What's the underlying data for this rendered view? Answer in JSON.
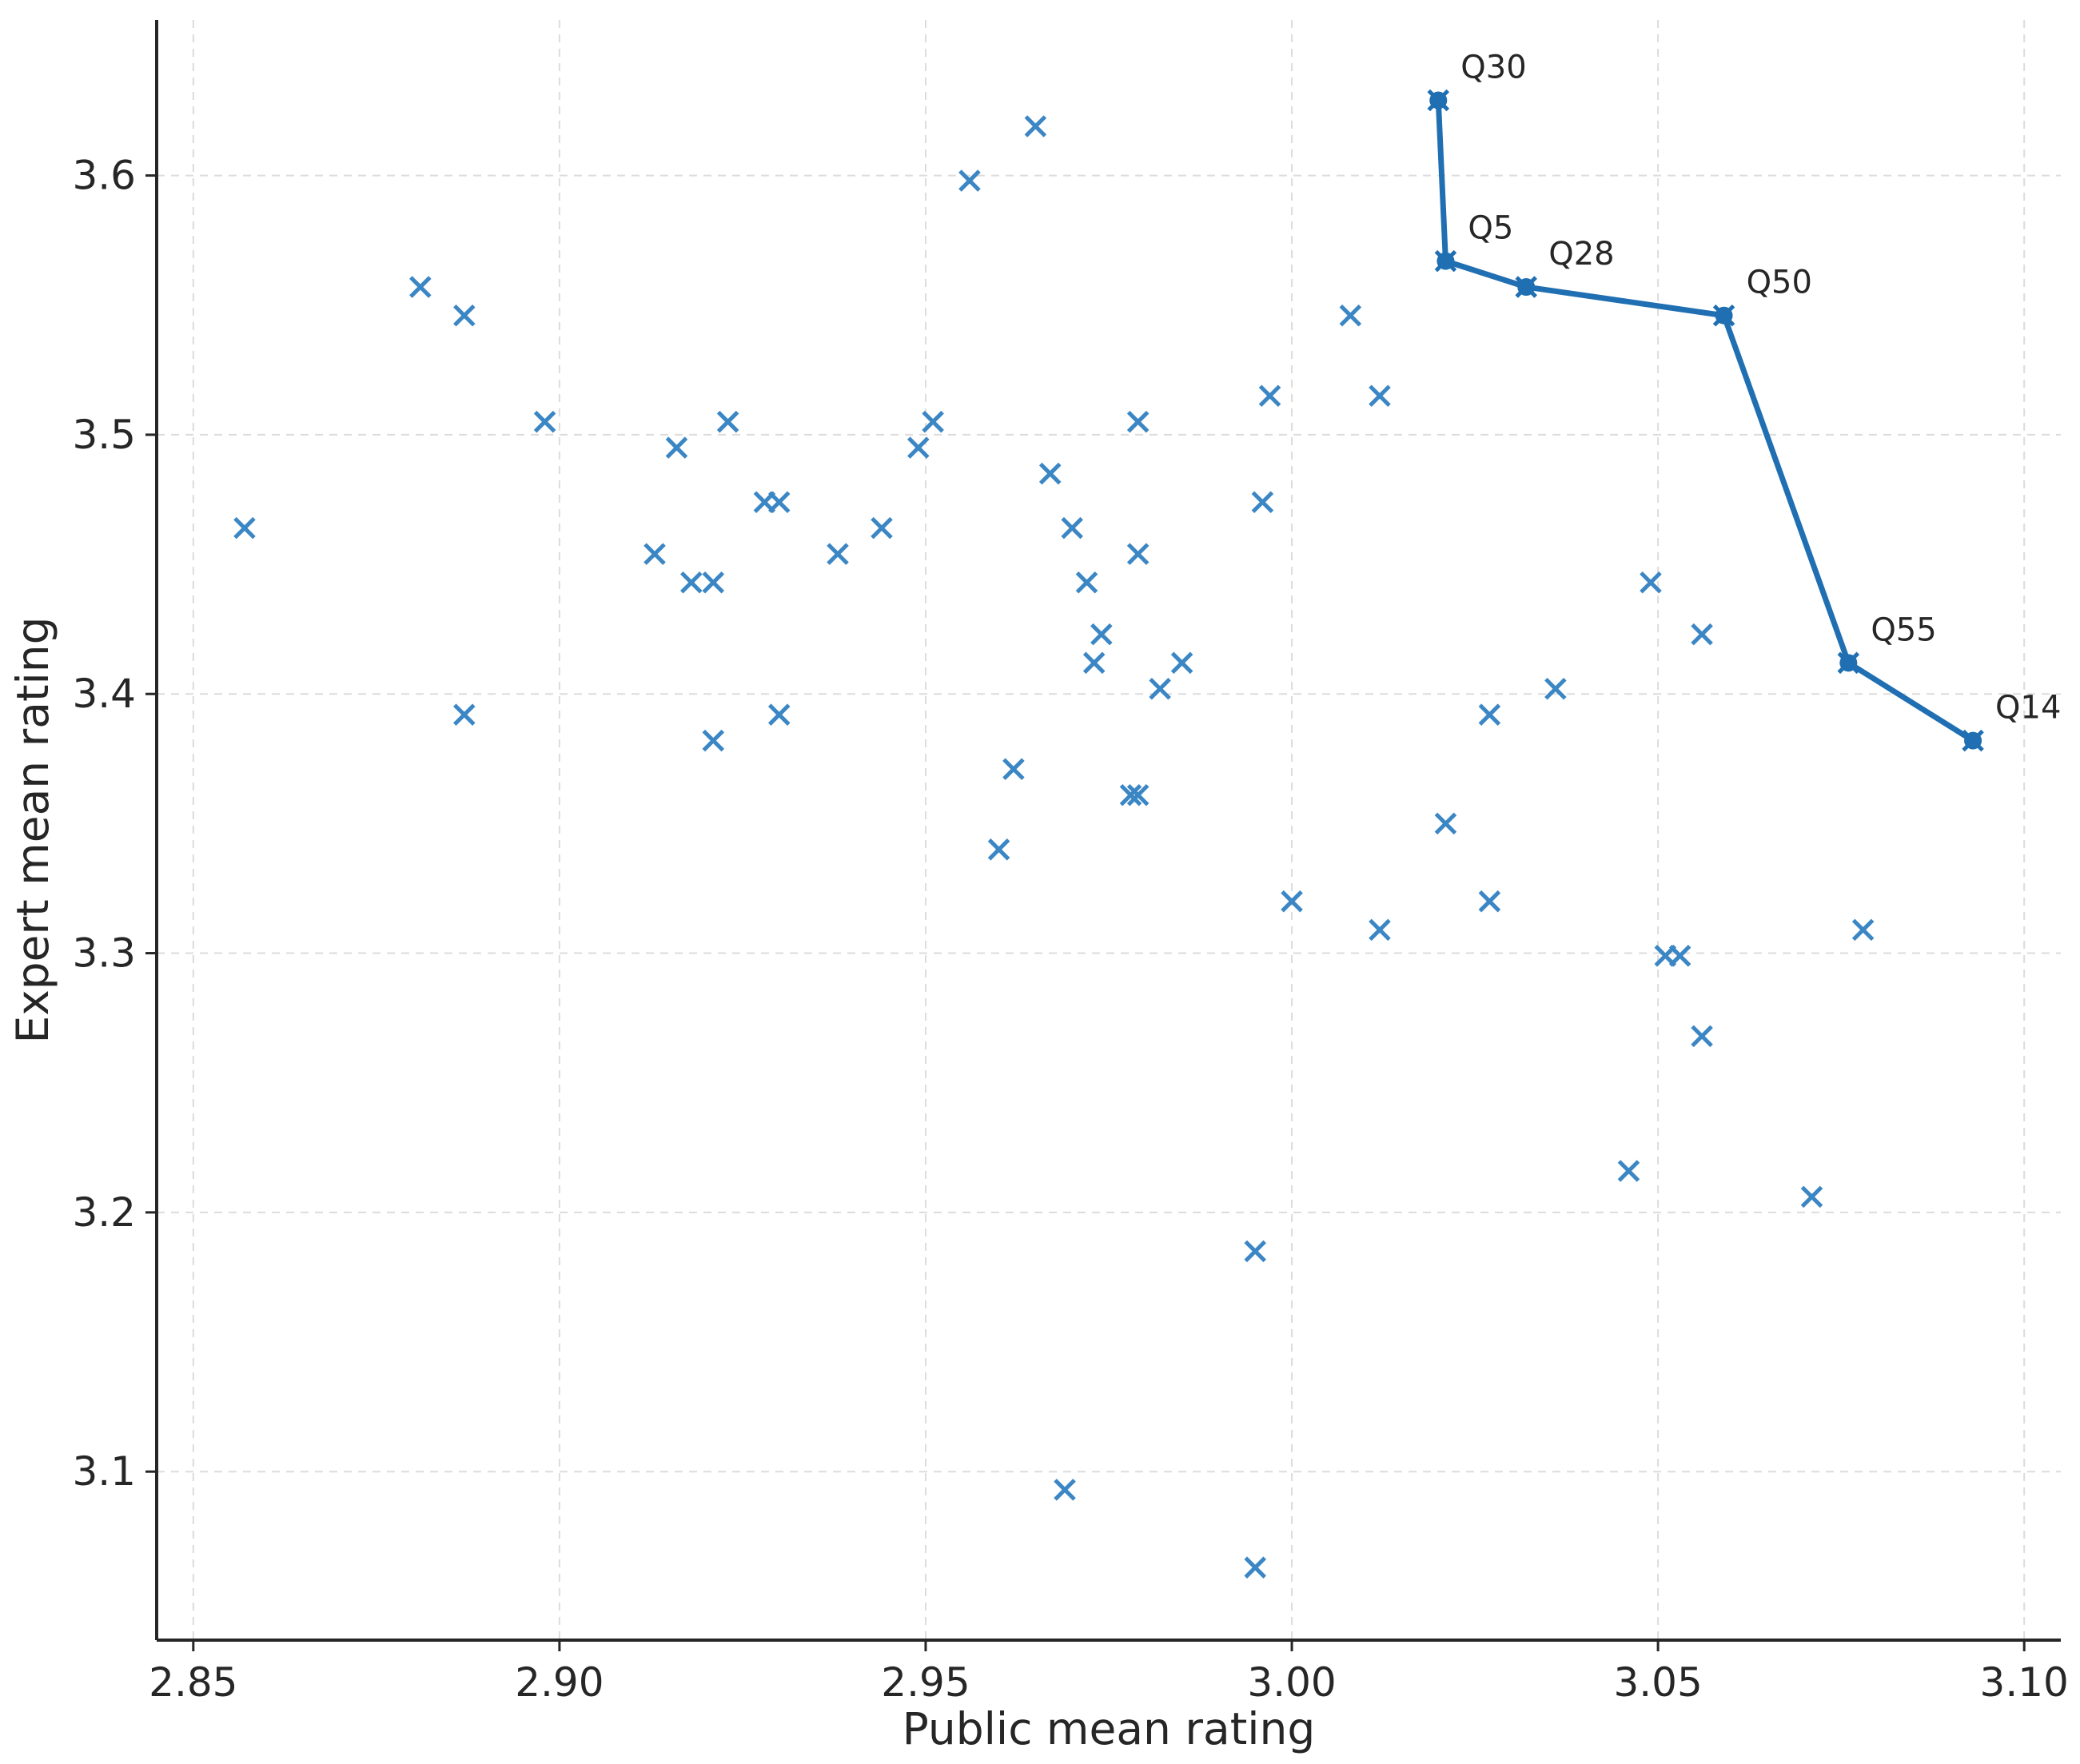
{
  "chart_data": {
    "type": "scatter",
    "title": "",
    "xlabel": "Public mean rating",
    "ylabel": "Expert mean rating",
    "xlim": [
      2.845,
      3.105
    ],
    "ylim": [
      3.035,
      3.66
    ],
    "xticks": [
      "2.85",
      "2.90",
      "2.95",
      "3.00",
      "3.05",
      "3.10"
    ],
    "yticks": [
      "3.1",
      "3.2",
      "3.3",
      "3.4",
      "3.5",
      "3.6"
    ],
    "grid": true,
    "point_color": "#3b86c4",
    "frontier_color": "#1f6fb2",
    "series": [
      {
        "marker": "x",
        "points": [
          [
            2.857,
            3.464
          ],
          [
            2.881,
            3.557
          ],
          [
            2.887,
            3.546
          ],
          [
            2.887,
            3.392
          ],
          [
            2.898,
            3.505
          ],
          [
            2.913,
            3.454
          ],
          [
            2.916,
            3.495
          ],
          [
            2.918,
            3.443
          ],
          [
            2.921,
            3.443
          ],
          [
            2.921,
            3.382
          ],
          [
            2.923,
            3.505
          ],
          [
            2.928,
            3.474
          ],
          [
            2.93,
            3.474
          ],
          [
            2.93,
            3.392
          ],
          [
            2.938,
            3.454
          ],
          [
            2.944,
            3.464
          ],
          [
            2.949,
            3.495
          ],
          [
            2.951,
            3.505
          ],
          [
            2.956,
            3.598
          ],
          [
            2.96,
            3.34
          ],
          [
            2.962,
            3.371
          ],
          [
            2.965,
            3.619
          ],
          [
            2.967,
            3.485
          ],
          [
            2.969,
            3.093
          ],
          [
            2.97,
            3.464
          ],
          [
            2.972,
            3.443
          ],
          [
            2.973,
            3.412
          ],
          [
            2.974,
            3.423
          ],
          [
            2.978,
            3.361
          ],
          [
            2.979,
            3.361
          ],
          [
            2.979,
            3.505
          ],
          [
            2.979,
            3.454
          ],
          [
            2.982,
            3.402
          ],
          [
            2.985,
            3.412
          ],
          [
            2.995,
            3.185
          ],
          [
            2.995,
            3.063
          ],
          [
            2.996,
            3.474
          ],
          [
            2.997,
            3.515
          ],
          [
            3.0,
            3.32
          ],
          [
            3.008,
            3.546
          ],
          [
            3.012,
            3.515
          ],
          [
            3.012,
            3.309
          ],
          [
            3.021,
            3.35
          ],
          [
            3.027,
            3.392
          ],
          [
            3.027,
            3.32
          ],
          [
            3.036,
            3.402
          ],
          [
            3.046,
            3.216
          ],
          [
            3.049,
            3.443
          ],
          [
            3.051,
            3.299
          ],
          [
            3.053,
            3.299
          ],
          [
            3.056,
            3.423
          ],
          [
            3.056,
            3.268
          ],
          [
            3.071,
            3.206
          ],
          [
            3.078,
            3.309
          ]
        ]
      },
      {
        "marker": "filled-x-line",
        "points": [
          {
            "x": 3.02,
            "y": 3.629,
            "label": "Q30"
          },
          {
            "x": 3.021,
            "y": 3.567,
            "label": "Q5"
          },
          {
            "x": 3.032,
            "y": 3.557,
            "label": "Q28"
          },
          {
            "x": 3.059,
            "y": 3.546,
            "label": "Q50"
          },
          {
            "x": 3.076,
            "y": 3.412,
            "label": "Q55"
          },
          {
            "x": 3.093,
            "y": 3.382,
            "label": "Q14"
          }
        ]
      }
    ]
  }
}
